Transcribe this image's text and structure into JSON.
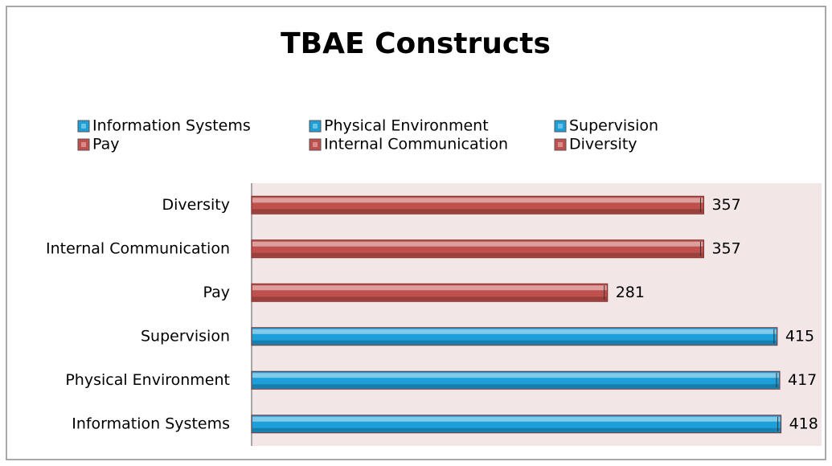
{
  "chart_data": {
    "type": "bar",
    "orientation": "horizontal",
    "title": "TBAE Constructs",
    "categories": [
      "Information Systems",
      "Physical Environment",
      "Supervision",
      "Pay",
      "Internal Communication",
      "Diversity"
    ],
    "values": [
      418,
      417,
      415,
      281,
      357,
      357
    ],
    "colors": [
      "#1d9fd9",
      "#1d9fd9",
      "#1d9fd9",
      "#c0504d",
      "#c0504d",
      "#c0504d"
    ],
    "xlim": [
      0,
      450
    ],
    "legend": "top"
  }
}
